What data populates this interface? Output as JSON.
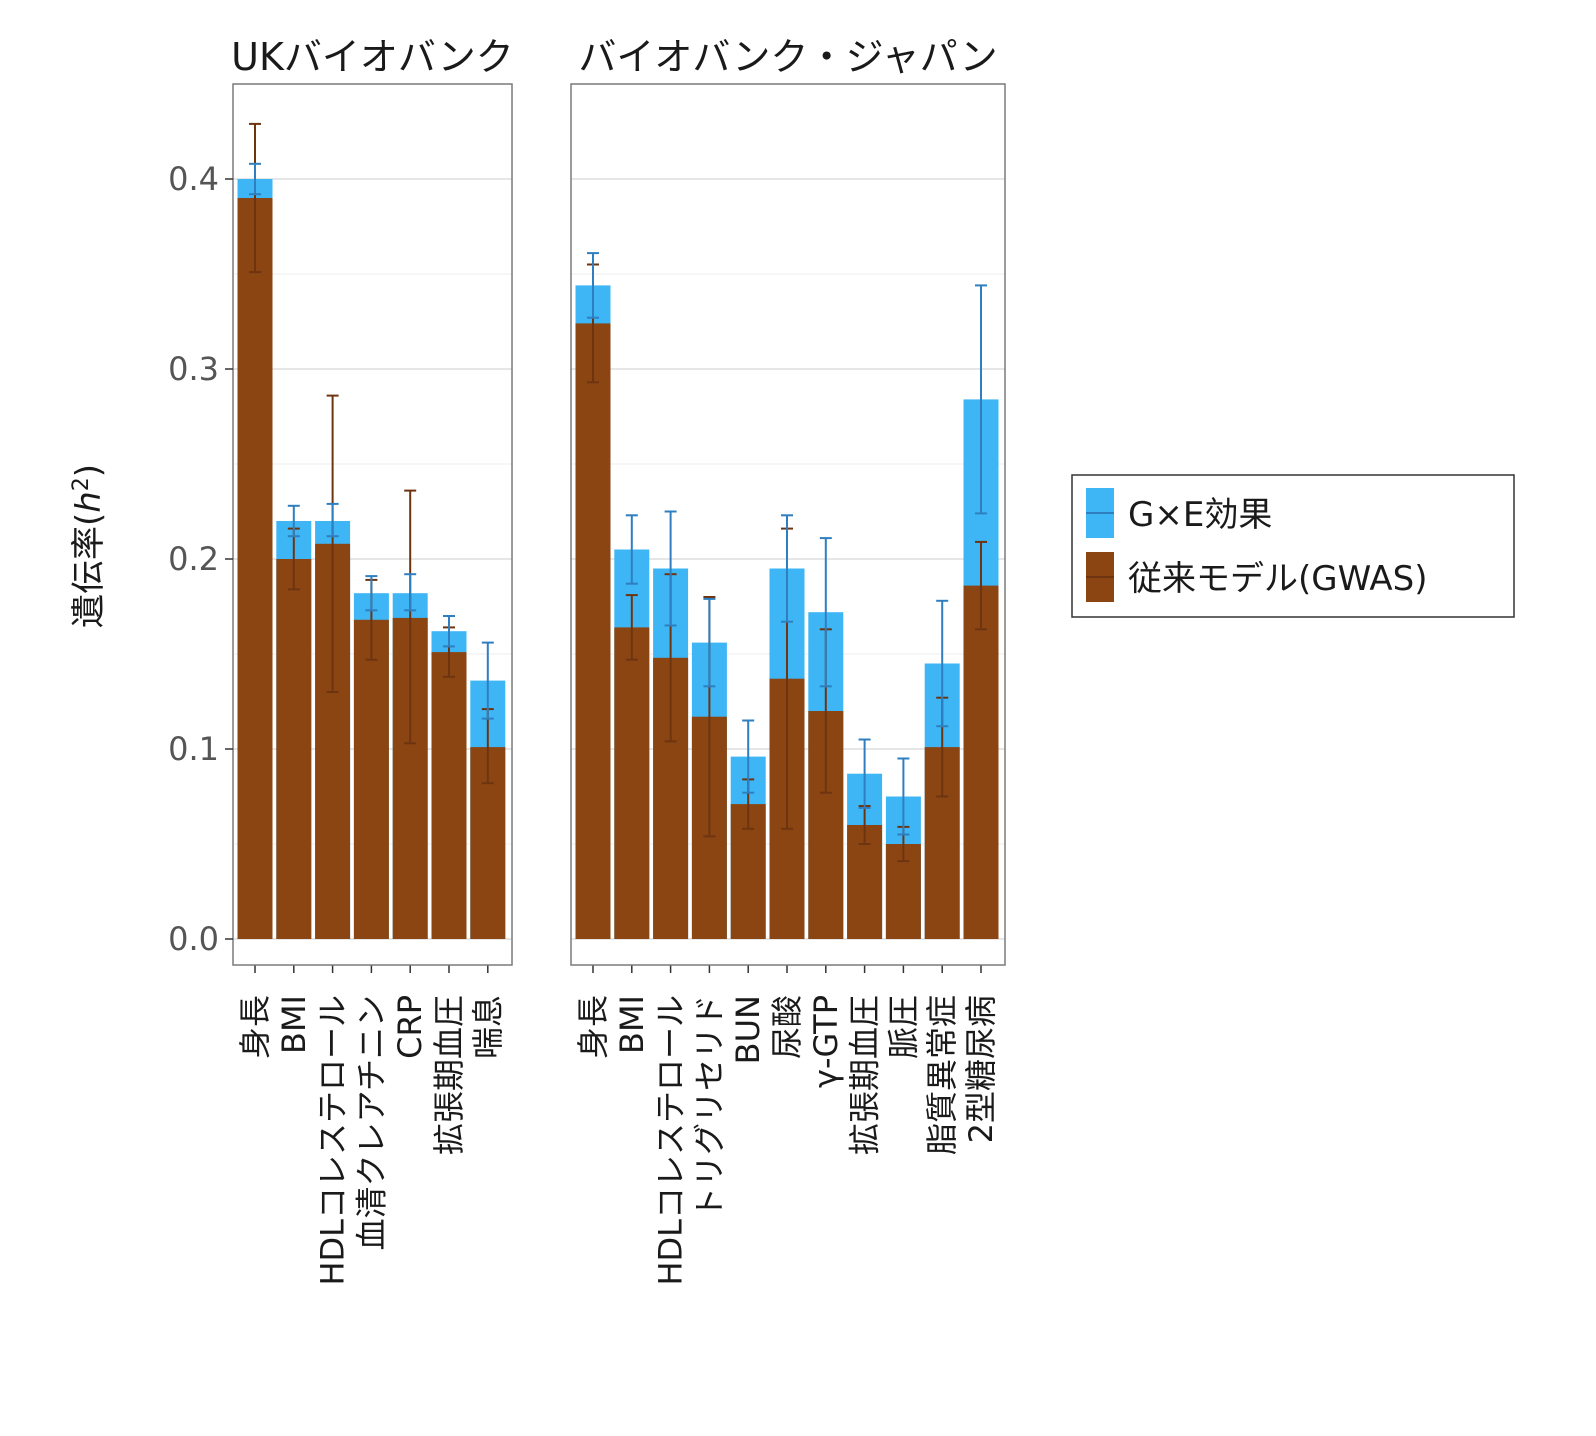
{
  "chart_data": {
    "type": "bar",
    "ylabel": "遺伝率(h²)",
    "ylabel_parts": {
      "main": "遺伝率(",
      "italic": "h",
      "sup": "2",
      "close": ")"
    },
    "ylim": [
      0,
      0.45
    ],
    "yticks": [
      "0.0",
      "0.1",
      "0.2",
      "0.3",
      "0.4"
    ],
    "ytick_values": [
      0.0,
      0.1,
      0.2,
      0.3,
      0.4
    ],
    "grid": true,
    "legend_position": "right",
    "legend": [
      {
        "name": "G×E効果",
        "color": "#3eb6f5"
      },
      {
        "name": "従来モデル(GWAS)",
        "color": "#8b4513"
      }
    ],
    "colors": {
      "gxe": "#3eb6f5",
      "gwas": "#8b4513",
      "gxe_err": "#2f7fc0",
      "gwas_err": "#6e3410"
    },
    "facets": [
      {
        "title": "UKバイオバンク",
        "categories": [
          "身長",
          "BMI",
          "HDLコレステロール",
          "血清クレアチニン",
          "CRP",
          "拡張期血圧",
          "喘息"
        ],
        "gxe_total": [
          0.4,
          0.22,
          0.22,
          0.182,
          0.182,
          0.162,
          0.136
        ],
        "gxe_err_low": [
          0.392,
          0.212,
          0.212,
          0.173,
          0.173,
          0.154,
          0.116
        ],
        "gxe_err_high": [
          0.408,
          0.228,
          0.229,
          0.191,
          0.192,
          0.17,
          0.156
        ],
        "gwas": [
          0.39,
          0.2,
          0.208,
          0.168,
          0.169,
          0.151,
          0.101
        ],
        "gwas_err_low": [
          0.351,
          0.184,
          0.13,
          0.147,
          0.103,
          0.138,
          0.082
        ],
        "gwas_err_high": [
          0.429,
          0.216,
          0.286,
          0.189,
          0.236,
          0.164,
          0.121
        ]
      },
      {
        "title": "バイオバンク・ジャパン",
        "categories": [
          "身長",
          "BMI",
          "HDLコレステロール",
          "トリグリセリド",
          "BUN",
          "尿酸",
          "γ-GTP",
          "拡張期血圧",
          "脈圧",
          "脂質異常症",
          "2型糖尿病"
        ],
        "gxe_total": [
          0.344,
          0.205,
          0.195,
          0.156,
          0.096,
          0.195,
          0.172,
          0.087,
          0.075,
          0.145,
          0.284
        ],
        "gxe_err_low": [
          0.327,
          0.187,
          0.165,
          0.133,
          0.077,
          0.167,
          0.133,
          0.069,
          0.055,
          0.112,
          0.224
        ],
        "gxe_err_high": [
          0.361,
          0.223,
          0.225,
          0.179,
          0.115,
          0.223,
          0.211,
          0.105,
          0.095,
          0.178,
          0.344
        ],
        "gwas": [
          0.324,
          0.164,
          0.148,
          0.117,
          0.071,
          0.137,
          0.12,
          0.06,
          0.05,
          0.101,
          0.186
        ],
        "gwas_err_low": [
          0.293,
          0.147,
          0.104,
          0.054,
          0.058,
          0.058,
          0.077,
          0.05,
          0.041,
          0.075,
          0.163
        ],
        "gwas_err_high": [
          0.355,
          0.181,
          0.192,
          0.18,
          0.084,
          0.216,
          0.163,
          0.07,
          0.059,
          0.127,
          0.209
        ]
      }
    ]
  }
}
